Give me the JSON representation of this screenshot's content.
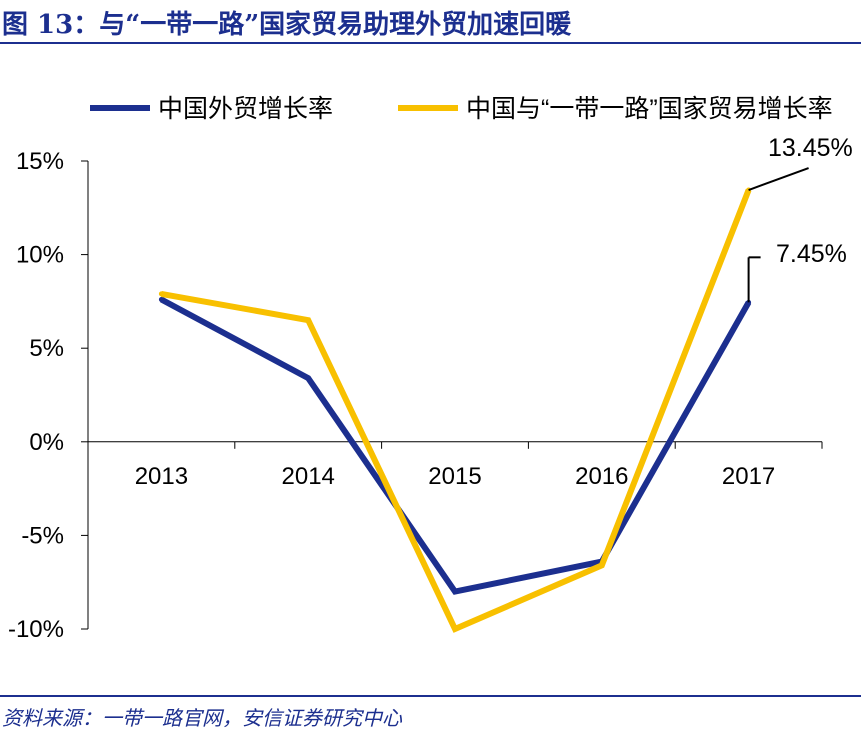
{
  "header": {
    "title": "图 13：与“一带一路”国家贸易助理外贸加速回暖"
  },
  "footer": {
    "source": "资料来源：一带一路官网，安信证券研究中心"
  },
  "colors": {
    "brand": "#1c2f8f",
    "series_blue": "#1c2f8f",
    "series_gold": "#f8c000"
  },
  "chart_data": {
    "type": "line",
    "title": "",
    "xlabel": "",
    "ylabel": "",
    "x": [
      "2013",
      "2014",
      "2015",
      "2016",
      "2017"
    ],
    "ylim": [
      -10,
      15
    ],
    "yticks": [
      -10,
      -5,
      0,
      5,
      10,
      15
    ],
    "ytick_labels": [
      "-10%",
      "-5%",
      "0%",
      "5%",
      "10%",
      "15%"
    ],
    "legend_position": "top",
    "grid": false,
    "series": [
      {
        "name": "中国外贸增长率",
        "color": "#1c2f8f",
        "values": [
          7.6,
          3.4,
          -8.0,
          -6.4,
          7.45
        ]
      },
      {
        "name": "中国与“一带一路”国家贸易增长率",
        "color": "#f8c000",
        "values": [
          7.9,
          6.5,
          -10.0,
          -6.6,
          13.45
        ]
      }
    ],
    "annotations": [
      {
        "series": 1,
        "x": "2017",
        "text": "13.45%"
      },
      {
        "series": 0,
        "x": "2017",
        "text": "7.45%"
      }
    ]
  }
}
